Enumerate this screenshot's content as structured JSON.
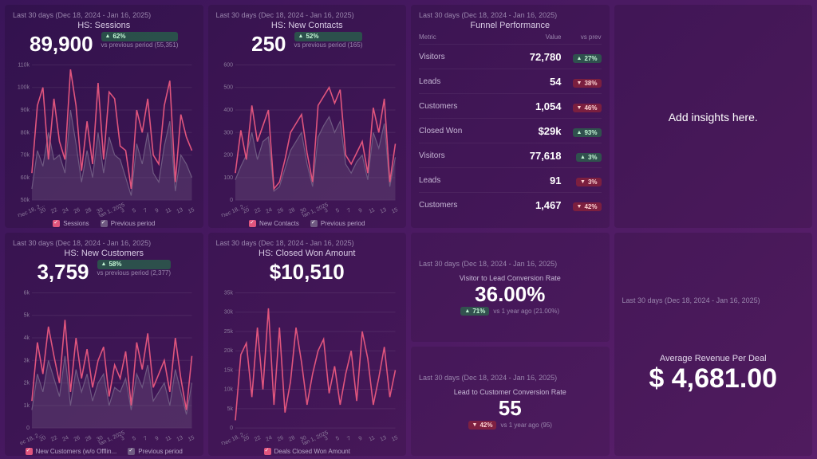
{
  "date_range": "Last 30 days (Dec 18, 2024 - Jan 16, 2025)",
  "colors": {
    "primary": "#e0557d",
    "prev": "#6f5a82",
    "prev_fill": "rgba(111,90,130,0.35)",
    "grid": "rgba(255,255,255,0.08)",
    "up_bg": "rgba(30,140,70,0.5)",
    "down_bg": "rgba(180,40,40,0.5)"
  },
  "panels": {
    "sessions": {
      "title": "HS: Sessions",
      "value": "89,900",
      "delta": "62%",
      "delta_dir": "up",
      "vs": "vs previous period (55,351)",
      "legend": [
        "Sessions",
        "Previous period"
      ],
      "y_ticks": [
        "50k",
        "60k",
        "70k",
        "80k",
        "90k",
        "100k",
        "110k"
      ],
      "x_ticks": [
        "Dec 18, 2...",
        "20",
        "22",
        "24",
        "26",
        "28",
        "30",
        "Jan 1, 2025",
        "3",
        "5",
        "7",
        "9",
        "11",
        "13",
        "15"
      ],
      "ylim": [
        50,
        110
      ],
      "series_current": [
        62,
        92,
        100,
        68,
        95,
        76,
        68,
        108,
        92,
        63,
        85,
        66,
        102,
        68,
        98,
        95,
        74,
        72,
        55,
        90,
        80,
        95,
        70,
        66,
        92,
        103,
        58,
        88,
        78,
        72
      ],
      "series_prev": [
        55,
        72,
        65,
        80,
        68,
        70,
        62,
        90,
        75,
        58,
        72,
        60,
        80,
        62,
        78,
        70,
        68,
        60,
        52,
        75,
        66,
        80,
        62,
        58,
        74,
        85,
        54,
        70,
        66,
        60
      ]
    },
    "contacts": {
      "title": "HS: New Contacts",
      "value": "250",
      "delta": "52%",
      "delta_dir": "up",
      "vs": "vs previous period (165)",
      "legend": [
        "New Contacts",
        "Previous period"
      ],
      "y_ticks": [
        "0",
        "100",
        "200",
        "300",
        "400",
        "500",
        "600"
      ],
      "x_ticks": [
        "Dec 18, 2...",
        "20",
        "22",
        "24",
        "26",
        "28",
        "30",
        "Jan 1, 2025",
        "3",
        "5",
        "7",
        "9",
        "11",
        "13",
        "15"
      ],
      "ylim": [
        0,
        600
      ],
      "series_current": [
        120,
        310,
        180,
        420,
        260,
        330,
        400,
        50,
        80,
        180,
        300,
        340,
        380,
        210,
        80,
        420,
        460,
        500,
        430,
        490,
        200,
        160,
        210,
        260,
        120,
        410,
        300,
        450,
        80,
        250
      ],
      "series_prev": [
        90,
        150,
        200,
        300,
        180,
        260,
        280,
        40,
        60,
        140,
        220,
        260,
        300,
        160,
        60,
        280,
        330,
        370,
        300,
        350,
        160,
        120,
        170,
        200,
        90,
        300,
        230,
        340,
        60,
        190
      ]
    },
    "customers": {
      "title": "HS: New Customers",
      "value": "3,759",
      "delta": "58%",
      "delta_dir": "up",
      "vs": "vs previous period (2,377)",
      "legend": [
        "New Customers (w/o Offlin...",
        "Previous period"
      ],
      "y_ticks": [
        "0",
        "1k",
        "2k",
        "3k",
        "4k",
        "5k",
        "6k"
      ],
      "x_ticks": [
        "ec 18, 2...",
        "20",
        "22",
        "24",
        "26",
        "28",
        "30",
        "Jan 1, 2025",
        "3",
        "5",
        "7",
        "9",
        "11",
        "13",
        "15"
      ],
      "ylim": [
        0,
        6
      ],
      "series_current": [
        1.2,
        3.8,
        2.4,
        4.5,
        3.2,
        2.0,
        4.8,
        1.6,
        4.0,
        2.2,
        3.5,
        1.8,
        3.0,
        3.6,
        1.4,
        2.8,
        2.2,
        3.4,
        1.0,
        3.8,
        2.6,
        4.2,
        1.8,
        2.4,
        3.0,
        1.6,
        4.0,
        2.2,
        0.8,
        3.2
      ],
      "series_prev": [
        0.8,
        2.4,
        1.6,
        3.0,
        2.2,
        1.4,
        3.2,
        1.0,
        2.6,
        1.6,
        2.4,
        1.2,
        2.0,
        2.4,
        1.0,
        1.8,
        1.6,
        2.2,
        0.8,
        2.4,
        1.8,
        2.8,
        1.2,
        1.6,
        2.0,
        1.0,
        2.6,
        1.6,
        0.6,
        2.0
      ]
    },
    "closedwon": {
      "title": "HS: Closed Won Amount",
      "value": "$10,510",
      "legend": [
        "Deals Closed Won Amount"
      ],
      "y_ticks": [
        "0",
        "5k",
        "10k",
        "15k",
        "20k",
        "25k",
        "30k",
        "35k"
      ],
      "x_ticks": [
        "Dec 18, 2...",
        "20",
        "22",
        "24",
        "26",
        "28",
        "30",
        "Jan 1, 2025",
        "3",
        "5",
        "7",
        "9",
        "11",
        "13",
        "15"
      ],
      "ylim": [
        0,
        35
      ],
      "series_current": [
        2,
        19,
        22,
        8,
        26,
        10,
        31,
        6,
        26,
        4,
        12,
        26,
        17,
        6,
        14,
        20,
        23,
        9,
        16,
        6,
        14,
        20,
        7,
        25,
        18,
        6,
        13,
        21,
        8,
        15
      ]
    }
  },
  "funnel": {
    "title": "Funnel Performance",
    "headers": [
      "Metric",
      "Value",
      "vs prev"
    ],
    "rows": [
      {
        "m": "Visitors",
        "v": "72,780",
        "d": "27%",
        "dir": "up"
      },
      {
        "m": "Leads",
        "v": "54",
        "d": "38%",
        "dir": "down"
      },
      {
        "m": "Customers",
        "v": "1,054",
        "d": "46%",
        "dir": "down"
      },
      {
        "m": "Closed Won",
        "v": "$29k",
        "d": "93%",
        "dir": "up"
      },
      {
        "m": "Visitors",
        "v": "77,618",
        "d": "3%",
        "dir": "up"
      },
      {
        "m": "Leads",
        "v": "91",
        "d": "3%",
        "dir": "down"
      },
      {
        "m": "Customers",
        "v": "1,467",
        "d": "42%",
        "dir": "down"
      }
    ]
  },
  "insights": "Add insights here.",
  "visitor_lead": {
    "title": "Visitor to Lead Conversion Rate",
    "value": "36.00%",
    "delta": "71%",
    "delta_dir": "up",
    "vs": "vs 1 year ago (21.00%)"
  },
  "lead_customer": {
    "title": "Lead to Customer Conversion Rate",
    "value": "55",
    "delta": "42%",
    "delta_dir": "down",
    "vs": "vs 1 year ago (95)"
  },
  "avg_revenue": {
    "title": "Average Revenue Per Deal",
    "value": "$ 4,681.00"
  }
}
